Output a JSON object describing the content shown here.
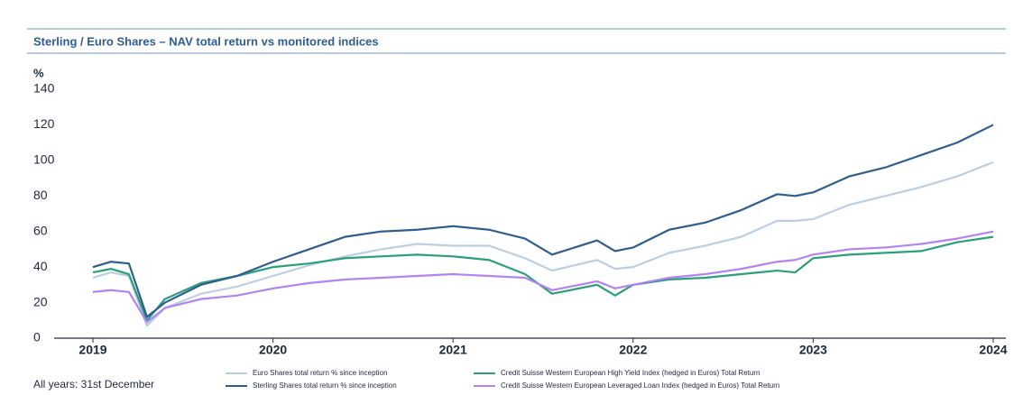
{
  "chart_data": {
    "type": "line",
    "title": "Sterling / Euro Shares – NAV total return vs monitored indices",
    "y_label": "%",
    "annotation": "All years: 31st December",
    "x": [
      2019,
      2019.1,
      2019.2,
      2019.3,
      2019.4,
      2019.6,
      2019.8,
      2020,
      2020.2,
      2020.4,
      2020.6,
      2020.8,
      2021,
      2021.2,
      2021.4,
      2021.55,
      2021.8,
      2021.9,
      2022,
      2022.2,
      2022.4,
      2022.6,
      2022.8,
      2022.9,
      2023,
      2023.2,
      2023.4,
      2023.6,
      2023.8,
      2024
    ],
    "series": [
      {
        "name": "Euro Shares total return % since inception",
        "color": "#bccfe2",
        "values": [
          34,
          37,
          35,
          7,
          17,
          25,
          29,
          35,
          41,
          46,
          50,
          53,
          52,
          52,
          45,
          38,
          44,
          39,
          40,
          48,
          52,
          57,
          66,
          66,
          67,
          75,
          80,
          85,
          91,
          99
        ]
      },
      {
        "name": "Sterling Shares total return % since inception",
        "color": "#2f5d8f",
        "values": [
          40,
          43,
          42,
          12,
          20,
          30,
          35,
          43,
          50,
          57,
          60,
          61,
          63,
          61,
          56,
          47,
          55,
          49,
          51,
          61,
          65,
          72,
          81,
          80,
          82,
          91,
          96,
          103,
          110,
          120
        ]
      },
      {
        "name": "Credit Suisse Western European High Yield Index (hedged in Euros) Total Return",
        "color": "#2a9f7a",
        "values": [
          37,
          39,
          36,
          10,
          22,
          31,
          35,
          40,
          42,
          45,
          46,
          47,
          46,
          44,
          36,
          25,
          30,
          24,
          30,
          33,
          34,
          36,
          38,
          37,
          45,
          47,
          48,
          49,
          54,
          57
        ]
      },
      {
        "name": "Credit Suisse Western European Leveraged Loan Index (hedged in Euros) Total Return",
        "color": "#b383f2",
        "values": [
          26,
          27,
          26,
          9,
          17,
          22,
          24,
          28,
          31,
          33,
          34,
          35,
          36,
          35,
          34,
          27,
          32,
          28,
          30,
          34,
          36,
          39,
          43,
          44,
          47,
          50,
          51,
          53,
          56,
          60
        ]
      }
    ],
    "xlim": [
      2019,
      2024
    ],
    "xticks": [
      2019,
      2020,
      2021,
      2022,
      2023,
      2024
    ],
    "ylim": [
      0,
      140
    ],
    "yticks": [
      0,
      20,
      40,
      60,
      80,
      100,
      120,
      140
    ],
    "grid": false,
    "legend": "bottom"
  }
}
